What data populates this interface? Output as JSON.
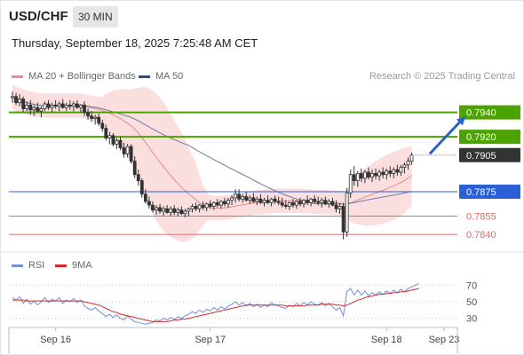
{
  "header": {
    "symbol": "USD/CHF",
    "timeframe": "30 MIN",
    "datetime": "Thursday, September 18, 2025 7:25:48 AM CET"
  },
  "legend": {
    "ma20_label": "MA 20 + Bollinger Bands",
    "ma50_label": "MA 50",
    "credit": "Research © 2025 Trading Central",
    "rsi_label": "RSI",
    "ma9_label": "9MA"
  },
  "colors": {
    "green": "#4ca300",
    "blue": "#2a5fd6",
    "red": "#e06a6a",
    "band": "#f9d4d4",
    "candle": "#333333",
    "current": "#333333",
    "rsi": "#6f8fd9",
    "ma9": "#d52b2b"
  },
  "chart_data": [
    {
      "type": "candlestick",
      "ylim": [
        0.7827,
        0.7963
      ],
      "x_ticks": [
        {
          "label": "Sep 16",
          "index": 12
        },
        {
          "label": "Sep 17",
          "index": 55
        },
        {
          "label": "Sep 18",
          "index": 104
        },
        {
          "label": "Sep 23",
          "index": 120
        }
      ],
      "levels": [
        {
          "value": 0.794,
          "label": "0.7940",
          "kind": "resistance",
          "style": "box"
        },
        {
          "value": 0.792,
          "label": "0.7920",
          "kind": "resistance",
          "style": "box"
        },
        {
          "value": 0.7905,
          "label": "0.7905",
          "kind": "current",
          "style": "box"
        },
        {
          "value": 0.7875,
          "label": "0.7875",
          "kind": "pivot",
          "style": "box"
        },
        {
          "value": 0.7855,
          "label": "0.7855",
          "kind": "support",
          "style": "text"
        },
        {
          "value": 0.784,
          "label": "0.7840",
          "kind": "support",
          "style": "text"
        }
      ],
      "projection": {
        "from": [
          116,
          0.7906
        ],
        "to": [
          126,
          0.7937
        ]
      },
      "candles": [
        [
          0.7952,
          0.7957,
          0.7948,
          0.7953
        ],
        [
          0.7953,
          0.7956,
          0.7946,
          0.7948
        ],
        [
          0.7948,
          0.7955,
          0.7945,
          0.7951
        ],
        [
          0.7951,
          0.7953,
          0.794,
          0.7943
        ],
        [
          0.7943,
          0.7949,
          0.7941,
          0.7946
        ],
        [
          0.7946,
          0.795,
          0.7938,
          0.7942
        ],
        [
          0.7942,
          0.7946,
          0.7937,
          0.7944
        ],
        [
          0.7944,
          0.7948,
          0.794,
          0.7941
        ],
        [
          0.7941,
          0.7945,
          0.7936,
          0.7943
        ],
        [
          0.7943,
          0.7949,
          0.7941,
          0.7947
        ],
        [
          0.7947,
          0.795,
          0.7942,
          0.7944
        ],
        [
          0.7944,
          0.7948,
          0.794,
          0.7946
        ],
        [
          0.7946,
          0.795,
          0.7943,
          0.7945
        ],
        [
          0.7945,
          0.7949,
          0.7941,
          0.7947
        ],
        [
          0.7947,
          0.7951,
          0.7943,
          0.7944
        ],
        [
          0.7944,
          0.7948,
          0.7941,
          0.7946
        ],
        [
          0.7946,
          0.795,
          0.7942,
          0.7945
        ],
        [
          0.7945,
          0.7949,
          0.7941,
          0.7947
        ],
        [
          0.7947,
          0.795,
          0.7943,
          0.7944
        ],
        [
          0.7944,
          0.7947,
          0.794,
          0.7946
        ],
        [
          0.7946,
          0.7949,
          0.7937,
          0.794
        ],
        [
          0.794,
          0.7943,
          0.7934,
          0.7937
        ],
        [
          0.7937,
          0.7941,
          0.7932,
          0.7935
        ],
        [
          0.7935,
          0.7938,
          0.793,
          0.7936
        ],
        [
          0.7936,
          0.7939,
          0.7929,
          0.7931
        ],
        [
          0.7931,
          0.7934,
          0.7924,
          0.7927
        ],
        [
          0.7927,
          0.793,
          0.7917,
          0.7919
        ],
        [
          0.7919,
          0.7924,
          0.7914,
          0.7921
        ],
        [
          0.7921,
          0.7923,
          0.7912,
          0.7914
        ],
        [
          0.7914,
          0.7919,
          0.791,
          0.7917
        ],
        [
          0.7917,
          0.792,
          0.7909,
          0.7911
        ],
        [
          0.7911,
          0.7915,
          0.7903,
          0.7906
        ],
        [
          0.7906,
          0.7914,
          0.7903,
          0.7912
        ],
        [
          0.7912,
          0.7914,
          0.7898,
          0.79
        ],
        [
          0.79,
          0.7904,
          0.7886,
          0.7889
        ],
        [
          0.7889,
          0.7893,
          0.788,
          0.7884
        ],
        [
          0.7884,
          0.7886,
          0.787,
          0.7873
        ],
        [
          0.7873,
          0.7877,
          0.7865,
          0.7867
        ],
        [
          0.7867,
          0.7871,
          0.7861,
          0.7864
        ],
        [
          0.7864,
          0.7867,
          0.7858,
          0.786
        ],
        [
          0.786,
          0.7864,
          0.7856,
          0.7862
        ],
        [
          0.7862,
          0.7865,
          0.7857,
          0.7859
        ],
        [
          0.7859,
          0.7863,
          0.7855,
          0.7861
        ],
        [
          0.7861,
          0.7864,
          0.7857,
          0.7858
        ],
        [
          0.7858,
          0.7863,
          0.7855,
          0.7861
        ],
        [
          0.7861,
          0.7864,
          0.7856,
          0.7858
        ],
        [
          0.7858,
          0.7862,
          0.7855,
          0.786
        ],
        [
          0.786,
          0.7863,
          0.7856,
          0.7857
        ],
        [
          0.7857,
          0.7861,
          0.7854,
          0.7859
        ],
        [
          0.7859,
          0.7862,
          0.7855,
          0.7861
        ],
        [
          0.7861,
          0.7865,
          0.7858,
          0.7863
        ],
        [
          0.7863,
          0.7866,
          0.7859,
          0.7861
        ],
        [
          0.7861,
          0.7865,
          0.7858,
          0.7864
        ],
        [
          0.7864,
          0.7867,
          0.786,
          0.7862
        ],
        [
          0.7862,
          0.7866,
          0.7859,
          0.7865
        ],
        [
          0.7865,
          0.7868,
          0.7861,
          0.7863
        ],
        [
          0.7863,
          0.7867,
          0.786,
          0.7866
        ],
        [
          0.7866,
          0.7869,
          0.7862,
          0.7864
        ],
        [
          0.7864,
          0.7868,
          0.7861,
          0.7867
        ],
        [
          0.7867,
          0.787,
          0.7863,
          0.7865
        ],
        [
          0.7865,
          0.787,
          0.7862,
          0.7868
        ],
        [
          0.7868,
          0.7872,
          0.7864,
          0.787
        ],
        [
          0.787,
          0.7877,
          0.7866,
          0.7873
        ],
        [
          0.7873,
          0.7877,
          0.7867,
          0.7869
        ],
        [
          0.7869,
          0.7873,
          0.7866,
          0.7871
        ],
        [
          0.7871,
          0.7875,
          0.7867,
          0.7868
        ],
        [
          0.7868,
          0.7872,
          0.7865,
          0.787
        ],
        [
          0.787,
          0.7874,
          0.7866,
          0.7867
        ],
        [
          0.7867,
          0.7871,
          0.7864,
          0.7869
        ],
        [
          0.7869,
          0.7873,
          0.7865,
          0.7866
        ],
        [
          0.7866,
          0.787,
          0.7863,
          0.7868
        ],
        [
          0.7868,
          0.7872,
          0.7865,
          0.7866
        ],
        [
          0.7866,
          0.787,
          0.7863,
          0.7869
        ],
        [
          0.7869,
          0.7872,
          0.7865,
          0.7867
        ],
        [
          0.7867,
          0.7871,
          0.7864,
          0.7866
        ],
        [
          0.7866,
          0.787,
          0.7862,
          0.7864
        ],
        [
          0.7864,
          0.7868,
          0.7861,
          0.7863
        ],
        [
          0.7863,
          0.7867,
          0.786,
          0.7866
        ],
        [
          0.7866,
          0.7869,
          0.7862,
          0.7864
        ],
        [
          0.7864,
          0.7868,
          0.7861,
          0.7867
        ],
        [
          0.7867,
          0.787,
          0.7863,
          0.7865
        ],
        [
          0.7865,
          0.7869,
          0.7862,
          0.7868
        ],
        [
          0.7868,
          0.7872,
          0.7864,
          0.7866
        ],
        [
          0.7866,
          0.787,
          0.7863,
          0.7869
        ],
        [
          0.7869,
          0.7872,
          0.7865,
          0.7867
        ],
        [
          0.7867,
          0.7871,
          0.7864,
          0.7866
        ],
        [
          0.7866,
          0.787,
          0.7862,
          0.7868
        ],
        [
          0.7868,
          0.7871,
          0.7864,
          0.7865
        ],
        [
          0.7865,
          0.7869,
          0.7862,
          0.7867
        ],
        [
          0.7867,
          0.787,
          0.7863,
          0.7864
        ],
        [
          0.7864,
          0.7868,
          0.7858,
          0.7861
        ],
        [
          0.7861,
          0.7865,
          0.7857,
          0.7863
        ],
        [
          0.7863,
          0.7866,
          0.7836,
          0.7842
        ],
        [
          0.7842,
          0.7878,
          0.7838,
          0.7874
        ],
        [
          0.7874,
          0.7893,
          0.787,
          0.7889
        ],
        [
          0.7889,
          0.7896,
          0.788,
          0.7884
        ],
        [
          0.7884,
          0.7892,
          0.7879,
          0.789
        ],
        [
          0.789,
          0.7894,
          0.7883,
          0.7886
        ],
        [
          0.7886,
          0.7893,
          0.7882,
          0.7891
        ],
        [
          0.7891,
          0.7895,
          0.7885,
          0.7887
        ],
        [
          0.7887,
          0.7893,
          0.7883,
          0.789
        ],
        [
          0.789,
          0.7894,
          0.7885,
          0.7888
        ],
        [
          0.7888,
          0.7893,
          0.7884,
          0.7891
        ],
        [
          0.7891,
          0.7895,
          0.7886,
          0.7889
        ],
        [
          0.7889,
          0.7894,
          0.7885,
          0.7892
        ],
        [
          0.7892,
          0.7896,
          0.7887,
          0.789
        ],
        [
          0.789,
          0.7895,
          0.7886,
          0.7893
        ],
        [
          0.7893,
          0.7897,
          0.7888,
          0.7891
        ],
        [
          0.7891,
          0.7897,
          0.7888,
          0.7895
        ],
        [
          0.7895,
          0.7899,
          0.789,
          0.7897
        ],
        [
          0.7897,
          0.7903,
          0.7893,
          0.79
        ],
        [
          0.79,
          0.7907,
          0.7897,
          0.7905
        ]
      ]
    },
    {
      "type": "line",
      "title": "RSI",
      "ylim": [
        20,
        80
      ],
      "y_ticks": [
        30,
        50,
        70
      ],
      "series": [
        {
          "name": "RSI",
          "values": [
            55,
            52,
            56,
            48,
            53,
            47,
            51,
            46,
            50,
            55,
            49,
            53,
            51,
            55,
            48,
            52,
            50,
            54,
            49,
            52,
            45,
            42,
            40,
            43,
            39,
            36,
            32,
            35,
            31,
            34,
            30,
            28,
            33,
            29,
            26,
            25,
            24,
            23,
            24,
            25,
            28,
            27,
            30,
            28,
            31,
            29,
            32,
            30,
            33,
            35,
            38,
            36,
            40,
            37,
            41,
            39,
            43,
            40,
            44,
            41,
            45,
            47,
            50,
            46,
            49,
            45,
            48,
            44,
            47,
            43,
            46,
            44,
            49,
            46,
            45,
            43,
            42,
            46,
            44,
            48,
            45,
            49,
            46,
            50,
            47,
            46,
            49,
            45,
            48,
            44,
            40,
            43,
            33,
            62,
            66,
            58,
            64,
            58,
            63,
            57,
            61,
            58,
            62,
            59,
            63,
            60,
            64,
            61,
            65,
            62,
            66,
            68,
            70,
            72
          ]
        },
        {
          "name": "9MA",
          "values": [
            52,
            52,
            52,
            52,
            51,
            51,
            51,
            51,
            51,
            51,
            51,
            51,
            51,
            51,
            51,
            51,
            51,
            51,
            51,
            51,
            50,
            49,
            48,
            47,
            46,
            44,
            42,
            40,
            38,
            37,
            35,
            34,
            33,
            32,
            31,
            30,
            29,
            28,
            27,
            26,
            26,
            26,
            26,
            26,
            27,
            28,
            28,
            29,
            29,
            30,
            31,
            32,
            33,
            34,
            35,
            36,
            37,
            38,
            39,
            40,
            41,
            42,
            43,
            44,
            45,
            46,
            46,
            46,
            46,
            46,
            46,
            46,
            46,
            46,
            46,
            46,
            45,
            45,
            45,
            45,
            45,
            45,
            46,
            46,
            46,
            46,
            47,
            47,
            47,
            47,
            46,
            46,
            45,
            46,
            48,
            50,
            52,
            53,
            55,
            56,
            57,
            58,
            59,
            59,
            60,
            60,
            61,
            61,
            62,
            62,
            63,
            64,
            65,
            66
          ]
        }
      ]
    }
  ]
}
